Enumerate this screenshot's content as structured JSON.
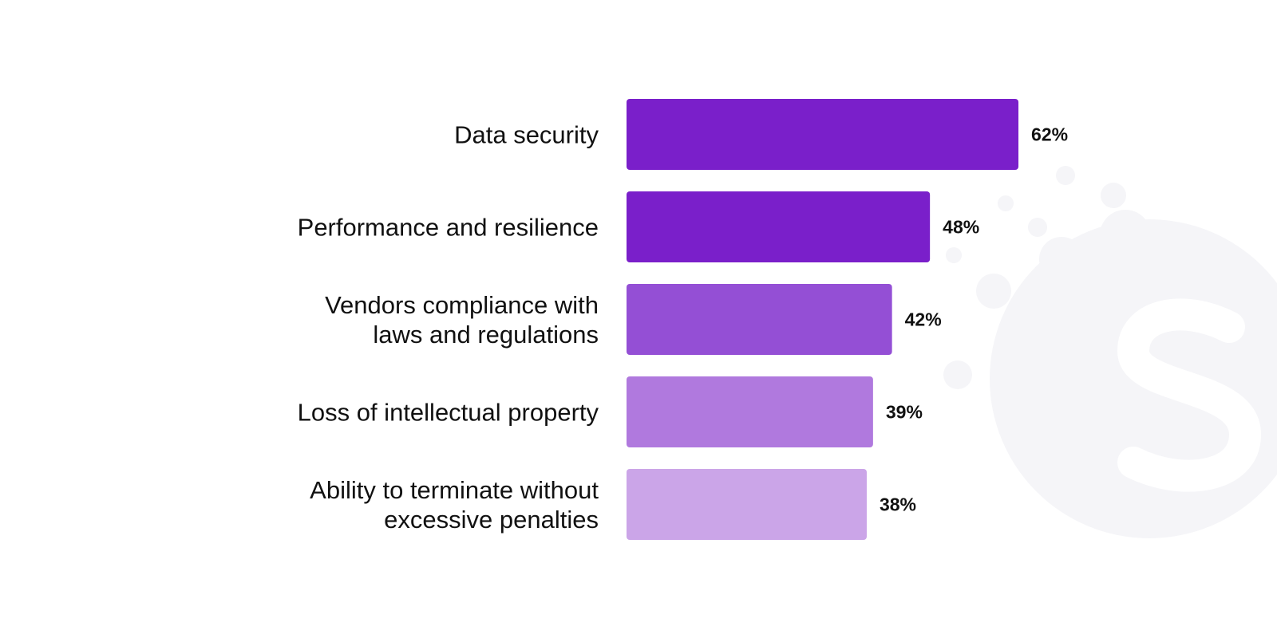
{
  "chart_data": {
    "type": "bar",
    "orientation": "horizontal",
    "categories": [
      [
        "Data security"
      ],
      [
        "Performance and resilience"
      ],
      [
        "Vendors compliance with",
        "laws and regulations"
      ],
      [
        "Loss of intellectual property"
      ],
      [
        "Ability to terminate without",
        "excessive penalties"
      ]
    ],
    "values": [
      62,
      48,
      42,
      39,
      38
    ],
    "value_labels": [
      "62%",
      "48%",
      "42%",
      "39%",
      "38%"
    ],
    "bar_colors": [
      "#7a1fca",
      "#7a1fca",
      "#944fd5",
      "#b079de",
      "#cba5e8"
    ],
    "grid": false,
    "axes_visible": false
  },
  "watermark": {
    "icon": "brand-logo-icon",
    "color": "#f4f4f7"
  }
}
